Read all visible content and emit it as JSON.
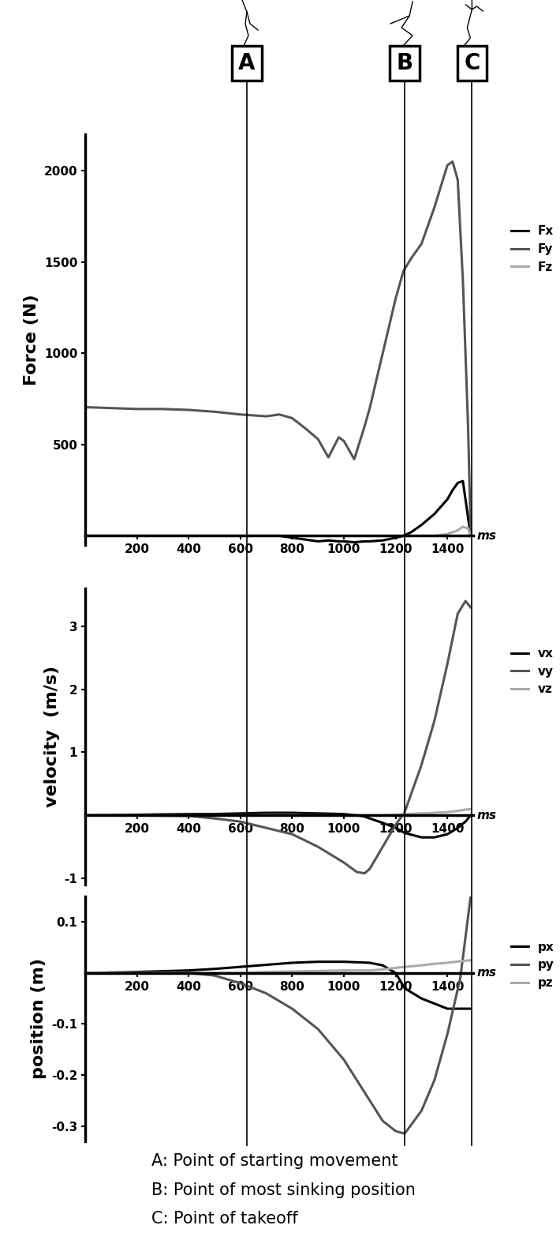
{
  "chart_data": [
    {
      "type": "line",
      "y_label": "Force (N)",
      "x_label": "ms",
      "legend": "right",
      "x": [
        0,
        100,
        200,
        300,
        400,
        500,
        600,
        650,
        700,
        750,
        800,
        850,
        900,
        940,
        980,
        1000,
        1040,
        1080,
        1100,
        1150,
        1200,
        1230,
        1260,
        1300,
        1350,
        1400,
        1420,
        1440,
        1460,
        1480,
        1490
      ],
      "series": [
        {
          "name": "Fx",
          "color": "#000000",
          "values": [
            0,
            0,
            0,
            0,
            0,
            0,
            0,
            0,
            0,
            0,
            -10,
            -20,
            -30,
            -25,
            -30,
            -30,
            -35,
            -30,
            -30,
            -25,
            -10,
            0,
            20,
            60,
            120,
            200,
            250,
            290,
            300,
            100,
            0
          ]
        },
        {
          "name": "Fy",
          "color": "#555555",
          "values": [
            705,
            700,
            695,
            695,
            690,
            680,
            665,
            660,
            655,
            665,
            645,
            590,
            530,
            430,
            540,
            520,
            420,
            600,
            700,
            1000,
            1300,
            1450,
            1520,
            1600,
            1800,
            2030,
            2050,
            1950,
            1400,
            600,
            20
          ]
        },
        {
          "name": "Fz",
          "color": "#aaaaaa",
          "values": [
            0,
            0,
            0,
            0,
            0,
            0,
            0,
            0,
            0,
            0,
            0,
            0,
            0,
            0,
            0,
            0,
            0,
            0,
            0,
            0,
            0,
            0,
            0,
            0,
            0,
            10,
            20,
            30,
            50,
            40,
            0
          ]
        }
      ],
      "xlim": [
        0,
        1500
      ],
      "ylim": [
        -50,
        2200
      ],
      "xticks": [
        200,
        400,
        600,
        800,
        1000,
        1200,
        1400
      ],
      "yticks": [
        500,
        1000,
        1500,
        2000
      ]
    },
    {
      "type": "line",
      "y_label": "velocity  (m/s)",
      "x_label": "ms",
      "legend": "right",
      "x": [
        0,
        200,
        400,
        500,
        600,
        700,
        800,
        900,
        1000,
        1050,
        1080,
        1100,
        1150,
        1200,
        1235,
        1300,
        1350,
        1400,
        1440,
        1470,
        1490
      ],
      "series": [
        {
          "name": "vx",
          "color": "#000000",
          "values": [
            0,
            0.01,
            0.02,
            0.02,
            0.03,
            0.04,
            0.04,
            0.03,
            0.02,
            0.0,
            -0.02,
            -0.05,
            -0.12,
            -0.2,
            -0.28,
            -0.35,
            -0.35,
            -0.3,
            -0.2,
            -0.1,
            0
          ]
        },
        {
          "name": "vy",
          "color": "#555555",
          "values": [
            0,
            0,
            -0.01,
            -0.05,
            -0.1,
            -0.2,
            -0.3,
            -0.5,
            -0.75,
            -0.9,
            -0.92,
            -0.85,
            -0.5,
            -0.15,
            0.05,
            0.8,
            1.5,
            2.4,
            3.2,
            3.4,
            3.3
          ]
        },
        {
          "name": "vz",
          "color": "#aaaaaa",
          "values": [
            0,
            0,
            0,
            0,
            0,
            0,
            0,
            0,
            0,
            0,
            0,
            0,
            0,
            0.01,
            0.02,
            0.03,
            0.04,
            0.05,
            0.07,
            0.09,
            0.1
          ]
        }
      ],
      "xlim": [
        0,
        1500
      ],
      "ylim": [
        -1.1,
        3.6
      ],
      "xticks": [
        200,
        400,
        600,
        800,
        1000,
        1200,
        1400
      ],
      "yticks": [
        -1,
        1,
        2,
        3
      ]
    },
    {
      "type": "line",
      "y_label": "position (m)",
      "x_label": "ms",
      "legend": "right",
      "x": [
        0,
        200,
        400,
        500,
        600,
        700,
        800,
        900,
        1000,
        1100,
        1150,
        1200,
        1235,
        1300,
        1350,
        1400,
        1450,
        1490
      ],
      "series": [
        {
          "name": "px",
          "color": "#000000",
          "values": [
            0,
            0.002,
            0.005,
            0.008,
            0.012,
            0.016,
            0.02,
            0.022,
            0.022,
            0.02,
            0.015,
            0.0,
            -0.03,
            -0.05,
            -0.06,
            -0.07,
            -0.07,
            -0.07
          ]
        },
        {
          "name": "py",
          "color": "#555555",
          "values": [
            0,
            0,
            0,
            -0.005,
            -0.02,
            -0.04,
            -0.07,
            -0.11,
            -0.17,
            -0.25,
            -0.29,
            -0.31,
            -0.315,
            -0.27,
            -0.21,
            -0.12,
            -0.01,
            0.15
          ]
        },
        {
          "name": "pz",
          "color": "#aaaaaa",
          "values": [
            0,
            0,
            0,
            0,
            0,
            0.002,
            0.003,
            0.004,
            0.005,
            0.005,
            0.007,
            0.01,
            0.012,
            0.015,
            0.018,
            0.02,
            0.023,
            0.025
          ]
        }
      ],
      "xlim": [
        0,
        1500
      ],
      "ylim": [
        -0.33,
        0.15
      ],
      "xticks": [
        200,
        400,
        600,
        800,
        1000,
        1200,
        1400
      ],
      "yticks": [
        -0.3,
        -0.2,
        -0.1,
        0.1
      ]
    }
  ],
  "markers": [
    {
      "label": "A",
      "x": 625
    },
    {
      "label": "B",
      "x": 1235
    },
    {
      "label": "C",
      "x": 1495
    }
  ],
  "caption": [
    "A: Point of starting movement",
    "B: Point of most sinking position",
    "C: Point of takeoff"
  ]
}
